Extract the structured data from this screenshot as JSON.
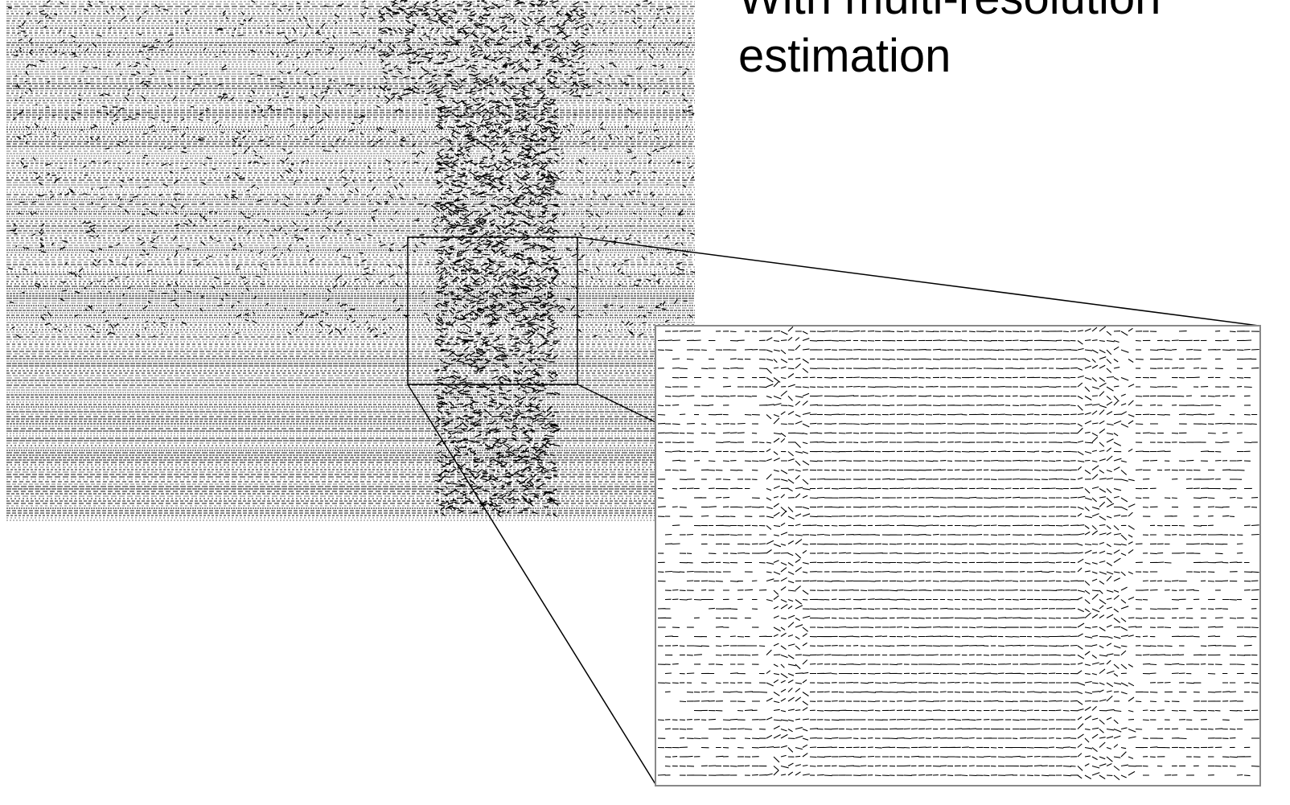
{
  "slide": {
    "title_lines": [
      "With multi-resolution",
      "estimation"
    ]
  }
}
